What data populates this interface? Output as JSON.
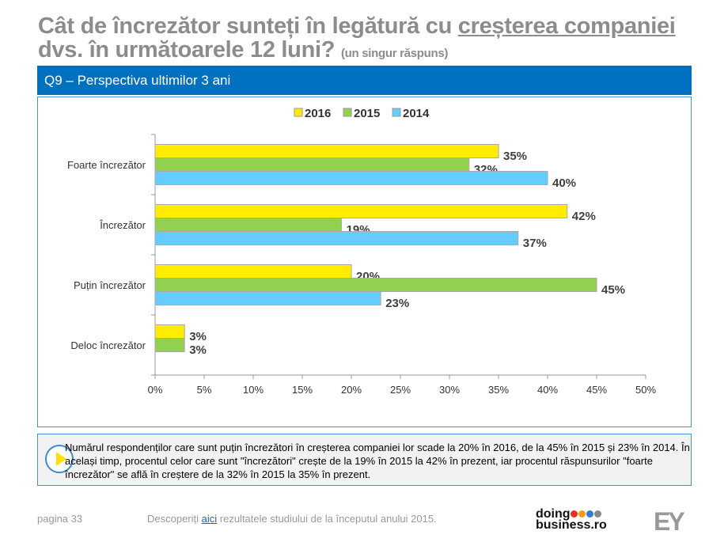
{
  "title": {
    "line1_pre": "Cât de încrezător sunteți în legătură cu ",
    "line1_underlined": "creșterea companiei",
    "line2": "dvs. în următoarele 12 luni?",
    "subtitle": "(un singur răspuns)"
  },
  "banner": "Q9 – Perspectiva ultimilor 3 ani",
  "chart_data": {
    "type": "bar",
    "orientation": "horizontal",
    "categories": [
      "Foarte încrezător",
      "Încrezător",
      "Puțin încrezător",
      "Deloc încrezător"
    ],
    "series": [
      {
        "name": "2016",
        "color": "#FFEC00",
        "values": [
          35,
          42,
          20,
          3
        ]
      },
      {
        "name": "2015",
        "color": "#92D050",
        "values": [
          32,
          19,
          45,
          3
        ]
      },
      {
        "name": "2014",
        "color": "#66CCFF",
        "values": [
          40,
          37,
          23,
          null
        ]
      }
    ],
    "xlim": [
      0,
      50
    ],
    "xticks": [
      "0%",
      "5%",
      "10%",
      "15%",
      "20%",
      "25%",
      "30%",
      "35%",
      "40%",
      "45%",
      "50%"
    ],
    "legend": "top",
    "grid": false
  },
  "note": "Numărul respondenților care sunt puțin încrezători în creșterea companiei lor scade la 20% în 2016, de la 45% în 2015 și 23% în 2014. În același timp, procentul celor care sunt \"încrezători\" crește de la 19% în 2015 la 42% în prezent, iar procentul răspunsurilor \"foarte încrezător\" se află în creștere de la 32% în 2015 la 35% în prezent.",
  "footer": {
    "page": "pagina 33",
    "pre": "Descoperiți ",
    "link": "aici",
    "post": " rezultatele studiului de la începutul anului 2015."
  },
  "logos": {
    "doingbusiness": "doing business.ro",
    "ey": "EY",
    "dot_colors": [
      "#e8302b",
      "#f39c12",
      "#2e7bd6",
      "#888888"
    ]
  }
}
